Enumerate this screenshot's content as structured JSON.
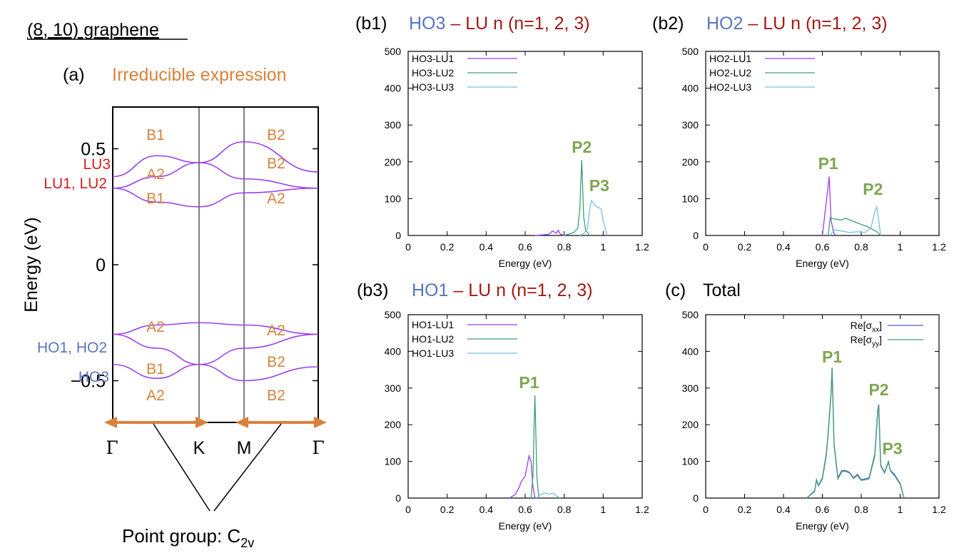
{
  "figure": {
    "title": "(8, 10) graphene",
    "colors": {
      "orange": "#d9813c",
      "blue": "#5a74c4",
      "red": "#d41e1e",
      "darkred": "#a11a14",
      "green": "#7fa653",
      "purple": "#9a3ef0",
      "teal": "#3f9e78",
      "lightblue": "#75c1de",
      "navy": "#5b5bd6"
    }
  },
  "panel_a": {
    "label": "(a)",
    "heading": "Irreducible expression",
    "ylabel": "Energy (eV)",
    "kpoints": [
      "Γ",
      "K",
      "M",
      "Γ"
    ],
    "point_group_prefix": "Point group: C",
    "point_group_sub": "2v",
    "level_labels": [
      "LU3",
      "LU1, LU2",
      "HO1, HO2",
      "HO3"
    ],
    "irrep_labels": [
      "B1",
      "A2",
      "B1",
      "B2",
      "B2",
      "A2",
      "A2",
      "B1",
      "A2",
      "A2",
      "B2",
      "B2"
    ]
  },
  "panel_b1": {
    "label": "(b1)",
    "title_a": "HO3",
    "title_dash": " – ",
    "title_b": "LU n (n=1, 2, 3)"
  },
  "panel_b2": {
    "label": "(b2)",
    "title_a": "HO2",
    "title_dash": " – ",
    "title_b": "LU n (n=1, 2, 3)"
  },
  "panel_b3": {
    "label": "(b3)",
    "title_a": "HO1",
    "title_dash": " – ",
    "title_b": "LU n (n=1, 2, 3)"
  },
  "panel_c": {
    "label": "(c)",
    "title": "Total"
  },
  "chart_data": [
    {
      "id": "a",
      "type": "line",
      "title": "Irreducible expression",
      "xlabel": "",
      "ylabel": "Energy (eV)",
      "x_ticks": [
        "Γ",
        "K",
        "M",
        "Γ"
      ],
      "y_ticks": [
        0.5,
        0,
        -0.5
      ],
      "y_tick_labels": [
        "0.5",
        "0",
        "−0.5"
      ],
      "ylim": [
        -0.68,
        0.68
      ],
      "series": [
        {
          "name": "LU3",
          "values_k": [
            0.38,
            0.47,
            0.44,
            0.53,
            0.4
          ]
        },
        {
          "name": "LU2",
          "values_k": [
            0.33,
            0.38,
            0.44,
            0.37,
            0.33
          ]
        },
        {
          "name": "LU1",
          "values_k": [
            0.33,
            0.27,
            0.25,
            0.31,
            0.33
          ]
        },
        {
          "name": "HO1",
          "values_k": [
            -0.3,
            -0.26,
            -0.25,
            -0.26,
            -0.3
          ]
        },
        {
          "name": "HO2",
          "values_k": [
            -0.3,
            -0.36,
            -0.43,
            -0.36,
            -0.3
          ]
        },
        {
          "name": "HO3",
          "values_k": [
            -0.43,
            -0.49,
            -0.43,
            -0.5,
            -0.44
          ]
        }
      ]
    },
    {
      "id": "b1",
      "type": "line",
      "title": "HO3 – LU n (n=1, 2, 3)",
      "xlabel": "Energy (eV)",
      "ylabel": "",
      "xlim": [
        0,
        1.2
      ],
      "ylim": [
        0,
        500
      ],
      "x_ticks": [
        0,
        0.2,
        0.4,
        0.6,
        0.8,
        1,
        1.2
      ],
      "x_tick_labels": [
        "0",
        "0.2",
        "0.4",
        "0.6",
        "0.8",
        "1",
        "1.2"
      ],
      "y_ticks": [
        0,
        100,
        200,
        300,
        400,
        500
      ],
      "y_tick_labels": [
        "0",
        "100",
        "200",
        "300",
        "400",
        "500"
      ],
      "legend": [
        "HO3-LU1",
        "HO3-LU2",
        "HO3-LU3"
      ],
      "annotations": [
        {
          "text": "P2",
          "x": 0.89,
          "y": 225
        },
        {
          "text": "P3",
          "x": 0.98,
          "y": 120
        }
      ],
      "series": [
        {
          "name": "HO3-LU1",
          "x": [
            0.65,
            0.72,
            0.74,
            0.76,
            0.77,
            0.78,
            0.8
          ],
          "y": [
            0,
            3,
            12,
            6,
            14,
            4,
            0
          ]
        },
        {
          "name": "HO3-LU2",
          "x": [
            0.8,
            0.85,
            0.87,
            0.88,
            0.89,
            0.9,
            0.91,
            0.93
          ],
          "y": [
            0,
            8,
            20,
            70,
            205,
            50,
            15,
            0
          ]
        },
        {
          "name": "HO3-LU3",
          "x": [
            0.88,
            0.9,
            0.92,
            0.93,
            0.94,
            0.96,
            0.99,
            1.0,
            1.02
          ],
          "y": [
            0,
            5,
            20,
            70,
            95,
            80,
            72,
            40,
            0
          ]
        }
      ]
    },
    {
      "id": "b2",
      "type": "line",
      "title": "HO2 – LU n (n=1, 2, 3)",
      "xlabel": "Energy (eV)",
      "ylabel": "",
      "xlim": [
        0,
        1.2
      ],
      "ylim": [
        0,
        500
      ],
      "x_ticks": [
        0,
        0.2,
        0.4,
        0.6,
        0.8,
        1,
        1.2
      ],
      "x_tick_labels": [
        "0",
        "0.2",
        "0.4",
        "0.6",
        "0.8",
        "1",
        "1.2"
      ],
      "y_ticks": [
        0,
        100,
        200,
        300,
        400,
        500
      ],
      "y_tick_labels": [
        "0",
        "100",
        "200",
        "300",
        "400",
        "500"
      ],
      "legend": [
        "HO2-LU1",
        "HO2-LU2",
        "HO2-LU3"
      ],
      "annotations": [
        {
          "text": "P1",
          "x": 0.63,
          "y": 180
        },
        {
          "text": "P2",
          "x": 0.86,
          "y": 110
        }
      ],
      "series": [
        {
          "name": "HO2-LU1",
          "x": [
            0.6,
            0.62,
            0.635,
            0.645,
            0.66,
            0.67
          ],
          "y": [
            0,
            90,
            160,
            40,
            5,
            0
          ]
        },
        {
          "name": "HO2-LU2",
          "x": [
            0.63,
            0.64,
            0.66,
            0.7,
            0.72,
            0.76,
            0.8,
            0.84,
            0.88,
            0.9
          ],
          "y": [
            0,
            48,
            45,
            42,
            47,
            38,
            30,
            22,
            10,
            0
          ]
        },
        {
          "name": "HO2-LU3",
          "x": [
            0.64,
            0.66,
            0.7,
            0.74,
            0.78,
            0.82,
            0.85,
            0.87,
            0.88,
            0.9
          ],
          "y": [
            0,
            15,
            12,
            8,
            10,
            8,
            20,
            65,
            78,
            0
          ]
        }
      ]
    },
    {
      "id": "b3",
      "type": "line",
      "title": "HO1 – LU n (n=1, 2, 3)",
      "xlabel": "Energy (eV)",
      "ylabel": "",
      "xlim": [
        0,
        1.2
      ],
      "ylim": [
        0,
        500
      ],
      "x_ticks": [
        0,
        0.2,
        0.4,
        0.6,
        0.8,
        1,
        1.2
      ],
      "x_tick_labels": [
        "0",
        "0.2",
        "0.4",
        "0.6",
        "0.8",
        "1",
        "1.2"
      ],
      "y_ticks": [
        0,
        100,
        200,
        300,
        400,
        500
      ],
      "y_tick_labels": [
        "0",
        "100",
        "200",
        "300",
        "400",
        "500"
      ],
      "legend": [
        "HO1-LU1",
        "HO1-LU2",
        "HO1-LU3"
      ],
      "annotations": [
        {
          "text": "P1",
          "x": 0.62,
          "y": 300
        }
      ],
      "series": [
        {
          "name": "HO1-LU1",
          "x": [
            0.52,
            0.55,
            0.57,
            0.58,
            0.6,
            0.62,
            0.63,
            0.64,
            0.65
          ],
          "y": [
            0,
            10,
            30,
            45,
            60,
            115,
            100,
            30,
            0
          ]
        },
        {
          "name": "HO1-LU2",
          "x": [
            0.63,
            0.64,
            0.645,
            0.65,
            0.66,
            0.67
          ],
          "y": [
            0,
            60,
            180,
            280,
            60,
            0
          ]
        },
        {
          "name": "HO1-LU3",
          "x": [
            0.66,
            0.68,
            0.7,
            0.72,
            0.74,
            0.76,
            0.78
          ],
          "y": [
            0,
            10,
            14,
            10,
            14,
            6,
            0
          ]
        }
      ]
    },
    {
      "id": "c",
      "type": "line",
      "title": "Total",
      "xlabel": "Energy (eV)",
      "ylabel": "",
      "xlim": [
        0,
        1.2
      ],
      "ylim": [
        0,
        500
      ],
      "x_ticks": [
        0,
        0.2,
        0.4,
        0.6,
        0.8,
        1,
        1.2
      ],
      "x_tick_labels": [
        "0",
        "0.2",
        "0.4",
        "0.6",
        "0.8",
        "1",
        "1.2"
      ],
      "y_ticks": [
        0,
        100,
        200,
        300,
        400,
        500
      ],
      "y_tick_labels": [
        "0",
        "100",
        "200",
        "300",
        "400",
        "500"
      ],
      "legend": [
        "Re[σxx]",
        "Re[σyy]"
      ],
      "annotations": [
        {
          "text": "P1",
          "x": 0.65,
          "y": 370
        },
        {
          "text": "P2",
          "x": 0.89,
          "y": 280
        },
        {
          "text": "P3",
          "x": 0.96,
          "y": 120
        }
      ],
      "series": [
        {
          "name": "Re[σxx]",
          "x": [
            0.52,
            0.56,
            0.57,
            0.58,
            0.6,
            0.62,
            0.63,
            0.645,
            0.65,
            0.66,
            0.68,
            0.7,
            0.72,
            0.74,
            0.76,
            0.78,
            0.8,
            0.84,
            0.87,
            0.885,
            0.89,
            0.9,
            0.92,
            0.94,
            0.95,
            0.97,
            1.0,
            1.02
          ],
          "y": [
            0,
            20,
            50,
            35,
            55,
            120,
            180,
            290,
            355,
            150,
            55,
            75,
            75,
            70,
            55,
            65,
            50,
            55,
            120,
            240,
            255,
            90,
            70,
            100,
            75,
            65,
            40,
            0
          ]
        },
        {
          "name": "Re[σyy]",
          "x": [
            0.52,
            0.56,
            0.57,
            0.58,
            0.6,
            0.62,
            0.63,
            0.645,
            0.65,
            0.66,
            0.68,
            0.7,
            0.72,
            0.74,
            0.76,
            0.78,
            0.8,
            0.84,
            0.87,
            0.885,
            0.89,
            0.9,
            0.92,
            0.94,
            0.95,
            0.97,
            1.0,
            1.02
          ],
          "y": [
            0,
            18,
            48,
            33,
            52,
            115,
            175,
            285,
            350,
            145,
            52,
            72,
            73,
            68,
            53,
            62,
            48,
            52,
            115,
            235,
            250,
            88,
            68,
            98,
            73,
            62,
            38,
            0
          ]
        }
      ]
    }
  ]
}
